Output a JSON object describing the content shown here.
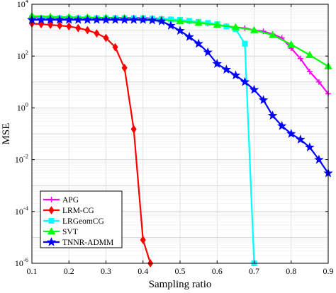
{
  "chart_data": {
    "type": "line",
    "title": "",
    "xlabel": "Sampling ratio",
    "ylabel": "MSE",
    "yscale": "log",
    "xlim": [
      0.1,
      0.9
    ],
    "ylim": [
      1e-06,
      10000.0
    ],
    "grid": true,
    "legend_position": "bottom-left",
    "x_ticks": [
      {
        "v": 0.1,
        "label": "0.1"
      },
      {
        "v": 0.2,
        "label": "0.2"
      },
      {
        "v": 0.3,
        "label": "0.3"
      },
      {
        "v": 0.4,
        "label": "0.4"
      },
      {
        "v": 0.5,
        "label": "0.5"
      },
      {
        "v": 0.6,
        "label": "0.6"
      },
      {
        "v": 0.7,
        "label": "0.7"
      },
      {
        "v": 0.8,
        "label": "0.8"
      },
      {
        "v": 0.9,
        "label": "0.9"
      }
    ],
    "y_ticks": [
      {
        "v": 1e-06,
        "base": "10",
        "exp": "-6"
      },
      {
        "v": 0.0001,
        "base": "10",
        "exp": "-4"
      },
      {
        "v": 0.01,
        "base": "10",
        "exp": "-2"
      },
      {
        "v": 1,
        "base": "10",
        "exp": "0"
      },
      {
        "v": 100,
        "base": "10",
        "exp": "2"
      },
      {
        "v": 10000,
        "base": "10",
        "exp": "4"
      }
    ],
    "series": [
      {
        "name": "APG",
        "color": "#ff00ff",
        "marker": "plus",
        "x": [
          0.1,
          0.125,
          0.15,
          0.175,
          0.2,
          0.225,
          0.25,
          0.275,
          0.3,
          0.325,
          0.35,
          0.375,
          0.4,
          0.425,
          0.45,
          0.475,
          0.5,
          0.525,
          0.55,
          0.575,
          0.6,
          0.625,
          0.65,
          0.675,
          0.7,
          0.725,
          0.75,
          0.775,
          0.8,
          0.825,
          0.85,
          0.875,
          0.9
        ],
        "y": [
          3000,
          3000,
          3000,
          3000,
          3000,
          3000,
          3000,
          3000,
          3000,
          3000,
          3000,
          3000,
          3000,
          2900,
          2800,
          2600,
          2400,
          2200,
          2000,
          1800,
          1600,
          1400,
          1300,
          1200,
          1000,
          900,
          700,
          500,
          200,
          80,
          25,
          10,
          3.5
        ]
      },
      {
        "name": "LRM-CG",
        "color": "#ff0000",
        "marker": "diamond",
        "x": [
          0.1,
          0.125,
          0.15,
          0.175,
          0.2,
          0.225,
          0.25,
          0.275,
          0.3,
          0.325,
          0.35,
          0.375,
          0.4,
          0.42
        ],
        "y": [
          1800,
          1700,
          1600,
          1500,
          1400,
          1200,
          1000,
          750,
          500,
          220,
          35,
          0.15,
          8e-06,
          1e-06
        ]
      },
      {
        "name": "LRGeomCG",
        "color": "#00ffff",
        "marker": "square",
        "x": [
          0.1,
          0.125,
          0.15,
          0.175,
          0.2,
          0.225,
          0.25,
          0.275,
          0.3,
          0.325,
          0.35,
          0.375,
          0.4,
          0.425,
          0.45,
          0.475,
          0.5,
          0.525,
          0.55,
          0.575,
          0.6,
          0.625,
          0.65,
          0.675,
          0.7
        ],
        "y": [
          2900,
          2900,
          2900,
          2900,
          2900,
          2900,
          2900,
          2900,
          2900,
          2900,
          2900,
          2900,
          2900,
          2800,
          2700,
          2600,
          2500,
          2300,
          2100,
          1900,
          1700,
          1400,
          1100,
          300,
          1e-06
        ]
      },
      {
        "name": "SVT",
        "color": "#00ff00",
        "marker": "triangle",
        "x": [
          0.1,
          0.15,
          0.2,
          0.25,
          0.3,
          0.35,
          0.4,
          0.45,
          0.5,
          0.55,
          0.6,
          0.65,
          0.7,
          0.75,
          0.8,
          0.85,
          0.9
        ],
        "y": [
          3500,
          3300,
          3200,
          3100,
          3000,
          2900,
          2800,
          2500,
          2200,
          1900,
          1600,
          1300,
          1000,
          650,
          280,
          110,
          40
        ]
      },
      {
        "name": "TNNR-ADMM",
        "color": "#0000ff",
        "marker": "star",
        "x": [
          0.1,
          0.125,
          0.15,
          0.175,
          0.2,
          0.225,
          0.25,
          0.275,
          0.3,
          0.325,
          0.35,
          0.375,
          0.4,
          0.425,
          0.45,
          0.475,
          0.5,
          0.525,
          0.55,
          0.575,
          0.6,
          0.625,
          0.65,
          0.675,
          0.7,
          0.725,
          0.75,
          0.775,
          0.8,
          0.825,
          0.85,
          0.875,
          0.9
        ],
        "y": [
          2500,
          2500,
          2500,
          2500,
          2500,
          2500,
          2500,
          2500,
          2500,
          2500,
          2500,
          2500,
          2500,
          2400,
          2200,
          1500,
          950,
          550,
          300,
          140,
          50,
          30,
          18,
          10,
          5,
          2,
          0.5,
          0.2,
          0.1,
          0.06,
          0.03,
          0.01,
          0.003
        ]
      }
    ]
  }
}
